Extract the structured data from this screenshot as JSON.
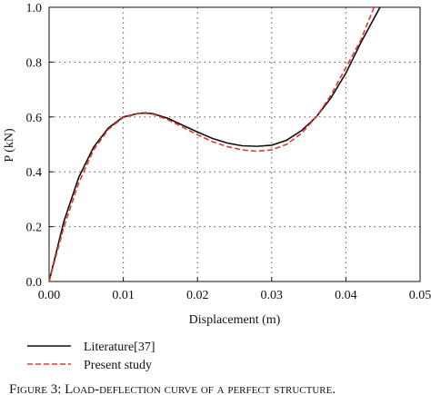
{
  "chart_data": {
    "type": "line",
    "xlabel": "Displacement (m)",
    "ylabel": "P (kN)",
    "caption": "Figure 3: Load-deflection curve of a perfect structure.",
    "xlim": [
      0,
      0.05
    ],
    "ylim": [
      0,
      1
    ],
    "xticks": [
      {
        "value": 0,
        "label": "0.00"
      },
      {
        "value": 0.01,
        "label": "0.01"
      },
      {
        "value": 0.02,
        "label": "0.02"
      },
      {
        "value": 0.03,
        "label": "0.03"
      },
      {
        "value": 0.04,
        "label": "0.04"
      },
      {
        "value": 0.05,
        "label": "0.05"
      }
    ],
    "yticks": [
      {
        "value": 0,
        "label": "0.0"
      },
      {
        "value": 0.2,
        "label": "0.2"
      },
      {
        "value": 0.4,
        "label": "0.4"
      },
      {
        "value": 0.6,
        "label": "0.6"
      },
      {
        "value": 0.8,
        "label": "0.8"
      },
      {
        "value": 1,
        "label": "1.0"
      }
    ],
    "grid": true,
    "legend": "bottom-left",
    "series": [
      {
        "name": "Literature[37]",
        "color": "#111111",
        "dash": "solid",
        "x": [
          0,
          0.002,
          0.004,
          0.006,
          0.008,
          0.01,
          0.012,
          0.013,
          0.014,
          0.016,
          0.018,
          0.02,
          0.022,
          0.024,
          0.026,
          0.028,
          0.03,
          0.032,
          0.034,
          0.036,
          0.038,
          0.04,
          0.042,
          0.044,
          0.0446
        ],
        "values": [
          0,
          0.22,
          0.38,
          0.49,
          0.56,
          0.6,
          0.613,
          0.615,
          0.612,
          0.595,
          0.57,
          0.545,
          0.522,
          0.505,
          0.495,
          0.493,
          0.497,
          0.515,
          0.55,
          0.6,
          0.67,
          0.76,
          0.87,
          0.97,
          1.0
        ]
      },
      {
        "name": "Present study",
        "color": "#e8372b",
        "dash": "dashed",
        "x": [
          0,
          0.002,
          0.004,
          0.006,
          0.008,
          0.01,
          0.012,
          0.013,
          0.014,
          0.016,
          0.018,
          0.02,
          0.022,
          0.024,
          0.026,
          0.028,
          0.03,
          0.032,
          0.034,
          0.036,
          0.038,
          0.04,
          0.042,
          0.0438
        ],
        "values": [
          0,
          0.2,
          0.36,
          0.48,
          0.555,
          0.598,
          0.612,
          0.613,
          0.61,
          0.59,
          0.563,
          0.535,
          0.51,
          0.492,
          0.48,
          0.475,
          0.48,
          0.5,
          0.54,
          0.6,
          0.68,
          0.78,
          0.88,
          1.0
        ]
      }
    ]
  }
}
